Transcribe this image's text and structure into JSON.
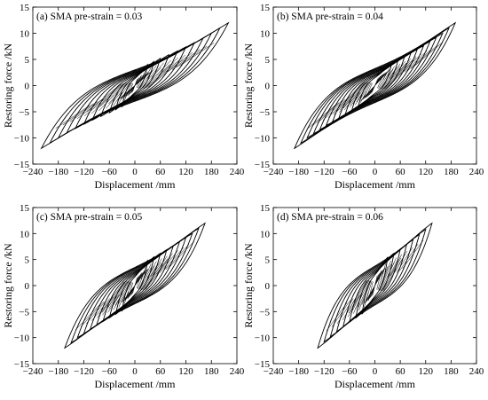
{
  "chart_data": [
    {
      "type": "line",
      "title": "(a) SMA pre-strain = 0.03",
      "xlabel": "Displacement /mm",
      "ylabel": "Restoring force /kN",
      "xlim": [
        -240,
        240
      ],
      "ylim": [
        -15,
        15
      ],
      "xticks": [
        "−240",
        "−180",
        "−120",
        "−60",
        "0",
        "60",
        "120",
        "180",
        "240"
      ],
      "yticks": [
        "15",
        "10",
        "5",
        "0",
        "−5",
        "−10",
        "−15"
      ],
      "grid": false,
      "series": [
        {
          "name": "",
          "loops": [
            {
              "amp": 220,
              "fpos": 12.0,
              "fneg": -12.0,
              "h": 6.0
            },
            {
              "amp": 200,
              "fpos": 11.0,
              "fneg": -11.0,
              "h": 5.7
            },
            {
              "amp": 180,
              "fpos": 10.0,
              "fneg": -10.0,
              "h": 5.4
            },
            {
              "amp": 160,
              "fpos": 9.0,
              "fneg": -9.0,
              "h": 5.1
            },
            {
              "amp": 140,
              "fpos": 8.2,
              "fneg": -8.2,
              "h": 4.8
            },
            {
              "amp": 120,
              "fpos": 7.4,
              "fneg": -7.4,
              "h": 4.5
            },
            {
              "amp": 100,
              "fpos": 6.6,
              "fneg": -6.6,
              "h": 4.2
            },
            {
              "amp": 80,
              "fpos": 5.9,
              "fneg": -5.9,
              "h": 3.9
            },
            {
              "amp": 60,
              "fpos": 5.2,
              "fneg": -5.2,
              "h": 3.5
            },
            {
              "amp": 45,
              "fpos": 4.6,
              "fneg": -4.6,
              "h": 3.1
            },
            {
              "amp": 30,
              "fpos": 4.0,
              "fneg": -4.0,
              "h": 2.7
            }
          ]
        }
      ]
    },
    {
      "type": "line",
      "title": "(b) SMA pre-strain = 0.04",
      "xlabel": "Displacement /mm",
      "ylabel": "Restoring force /kN",
      "xlim": [
        -240,
        240
      ],
      "ylim": [
        -15,
        15
      ],
      "xticks": [
        "−240",
        "−180",
        "−120",
        "−60",
        "0",
        "60",
        "120",
        "180",
        "240"
      ],
      "yticks": [
        "15",
        "10",
        "5",
        "0",
        "−5",
        "−10",
        "−15"
      ],
      "grid": false,
      "series": [
        {
          "name": "",
          "loops": [
            {
              "amp": 190,
              "fpos": 12.0,
              "fneg": -12.0,
              "h": 6.5
            },
            {
              "amp": 175,
              "fpos": 11.0,
              "fneg": -11.0,
              "h": 6.2
            },
            {
              "amp": 160,
              "fpos": 10.0,
              "fneg": -10.0,
              "h": 5.9
            },
            {
              "amp": 145,
              "fpos": 9.2,
              "fneg": -9.2,
              "h": 5.6
            },
            {
              "amp": 130,
              "fpos": 8.4,
              "fneg": -8.4,
              "h": 5.3
            },
            {
              "amp": 115,
              "fpos": 7.6,
              "fneg": -7.6,
              "h": 5.0
            },
            {
              "amp": 100,
              "fpos": 6.9,
              "fneg": -6.9,
              "h": 4.7
            },
            {
              "amp": 85,
              "fpos": 6.2,
              "fneg": -6.2,
              "h": 4.3
            },
            {
              "amp": 70,
              "fpos": 5.5,
              "fneg": -5.5,
              "h": 3.9
            },
            {
              "amp": 55,
              "fpos": 4.9,
              "fneg": -4.9,
              "h": 3.5
            },
            {
              "amp": 40,
              "fpos": 4.3,
              "fneg": -4.3,
              "h": 3.0
            }
          ]
        }
      ]
    },
    {
      "type": "line",
      "title": "(c) SMA pre-strain = 0.05",
      "xlabel": "Displacement /mm",
      "ylabel": "Restoring force /kN",
      "xlim": [
        -240,
        240
      ],
      "ylim": [
        -15,
        15
      ],
      "xticks": [
        "−240",
        "−180",
        "−120",
        "−60",
        "0",
        "60",
        "120",
        "180",
        "240"
      ],
      "yticks": [
        "15",
        "10",
        "5",
        "0",
        "−5",
        "−10",
        "−15"
      ],
      "grid": false,
      "series": [
        {
          "name": "",
          "loops": [
            {
              "amp": 165,
              "fpos": 12.0,
              "fneg": -12.0,
              "h": 7.0
            },
            {
              "amp": 150,
              "fpos": 11.0,
              "fneg": -11.0,
              "h": 6.7
            },
            {
              "amp": 135,
              "fpos": 10.0,
              "fneg": -10.0,
              "h": 6.4
            },
            {
              "amp": 120,
              "fpos": 9.2,
              "fneg": -9.2,
              "h": 6.0
            },
            {
              "amp": 105,
              "fpos": 8.4,
              "fneg": -8.4,
              "h": 5.6
            },
            {
              "amp": 90,
              "fpos": 7.6,
              "fneg": -7.6,
              "h": 5.2
            },
            {
              "amp": 75,
              "fpos": 6.9,
              "fneg": -6.9,
              "h": 4.8
            },
            {
              "amp": 60,
              "fpos": 6.2,
              "fneg": -6.2,
              "h": 4.4
            },
            {
              "amp": 45,
              "fpos": 5.5,
              "fneg": -5.5,
              "h": 3.9
            },
            {
              "amp": 30,
              "fpos": 4.8,
              "fneg": -4.8,
              "h": 3.4
            }
          ]
        }
      ]
    },
    {
      "type": "line",
      "title": "(d) SMA pre-strain = 0.06",
      "xlabel": "Displacement /mm",
      "ylabel": "Restoring force /kN",
      "xlim": [
        -240,
        240
      ],
      "ylim": [
        -15,
        15
      ],
      "xticks": [
        "−240",
        "−180",
        "−120",
        "−60",
        "0",
        "60",
        "120",
        "180",
        "240"
      ],
      "yticks": [
        "15",
        "10",
        "5",
        "0",
        "−5",
        "−10",
        "−15"
      ],
      "grid": false,
      "series": [
        {
          "name": "",
          "loops": [
            {
              "amp": 135,
              "fpos": 12.0,
              "fneg": -12.0,
              "h": 7.5
            },
            {
              "amp": 120,
              "fpos": 10.8,
              "fneg": -10.8,
              "h": 7.1
            },
            {
              "amp": 105,
              "fpos": 9.8,
              "fneg": -9.8,
              "h": 6.7
            },
            {
              "amp": 90,
              "fpos": 8.8,
              "fneg": -8.8,
              "h": 6.2
            },
            {
              "amp": 75,
              "fpos": 7.9,
              "fneg": -7.9,
              "h": 5.7
            },
            {
              "amp": 60,
              "fpos": 7.0,
              "fneg": -7.0,
              "h": 5.2
            },
            {
              "amp": 45,
              "fpos": 6.2,
              "fneg": -6.2,
              "h": 4.7
            },
            {
              "amp": 30,
              "fpos": 5.4,
              "fneg": -5.4,
              "h": 4.1
            }
          ]
        }
      ]
    }
  ]
}
